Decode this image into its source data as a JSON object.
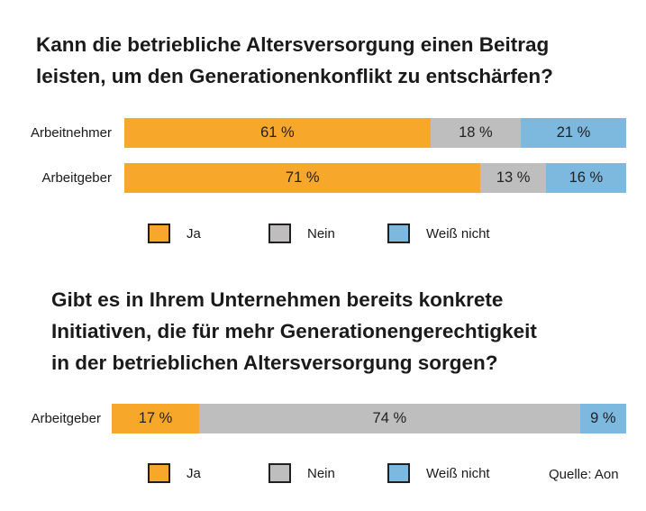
{
  "chart_data": [
    {
      "type": "bar",
      "orientation": "horizontal",
      "stacked": true,
      "title": [
        "Kann die betriebliche Altersversorgung einen Beitrag",
        "leisten, um den Generationenkonflikt zu entschärfen?"
      ],
      "categories": [
        "Arbeitnehmer",
        "Arbeitgeber"
      ],
      "series": [
        {
          "name": "Ja",
          "color": "#F7A82B",
          "values": [
            61,
            71
          ]
        },
        {
          "name": "Nein",
          "color": "#BEBEBE",
          "values": [
            18,
            13
          ]
        },
        {
          "name": "Weiß nicht",
          "color": "#7DB8DE",
          "values": [
            21,
            16
          ]
        }
      ],
      "value_suffix": " %",
      "legend": "bottom"
    },
    {
      "type": "bar",
      "orientation": "horizontal",
      "stacked": true,
      "title": [
        "Gibt es in Ihrem Unternehmen bereits konkrete",
        "Initiativen, die für mehr Generationengerechtigkeit",
        "in der betrieblichen Altersversorgung sorgen?"
      ],
      "categories": [
        "Arbeitgeber"
      ],
      "series": [
        {
          "name": "Ja",
          "color": "#F7A82B",
          "values": [
            17
          ]
        },
        {
          "name": "Nein",
          "color": "#BEBEBE",
          "values": [
            74
          ]
        },
        {
          "name": "Weiß nicht",
          "color": "#7DB8DE",
          "values": [
            9
          ]
        }
      ],
      "value_suffix": " %",
      "legend": "bottom"
    }
  ],
  "source": "Quelle: Aon"
}
